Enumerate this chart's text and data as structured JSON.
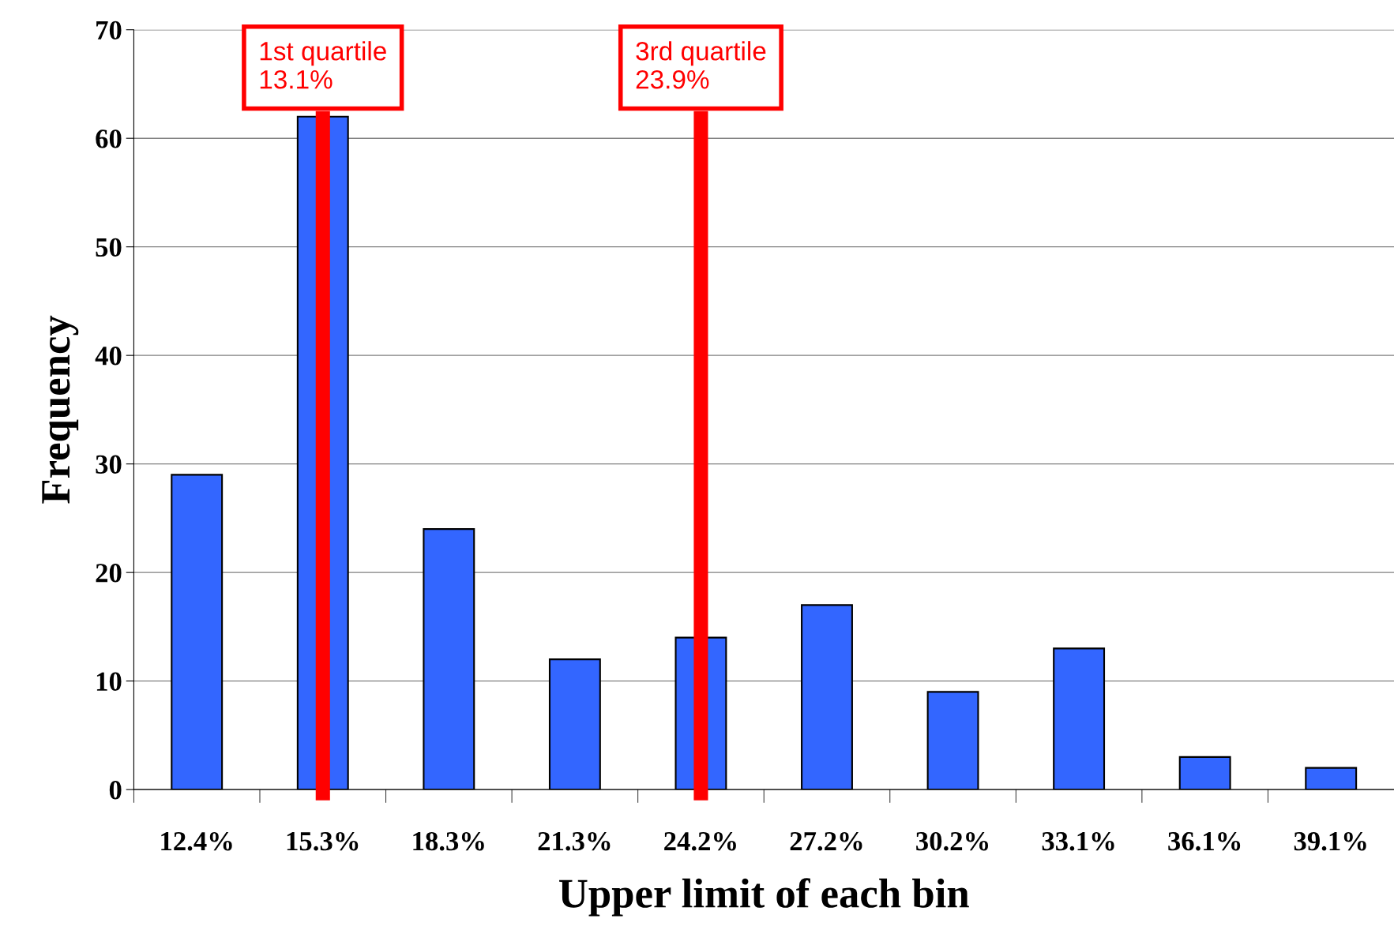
{
  "chart_data": {
    "type": "bar",
    "xlabel": "Upper limit of each bin",
    "ylabel": "Frequency",
    "categories": [
      "12.4%",
      "15.3%",
      "18.3%",
      "21.3%",
      "24.2%",
      "27.2%",
      "30.2%",
      "33.1%",
      "36.1%",
      "39.1%"
    ],
    "values": [
      29,
      62,
      24,
      12,
      14,
      17,
      9,
      13,
      3,
      2
    ],
    "color": "#3366ff",
    "ylim": [
      0,
      70
    ],
    "yticks": [
      0,
      10,
      20,
      30,
      40,
      50,
      60,
      70
    ],
    "grid": "y",
    "ref_lines": [
      {
        "axis": "x",
        "value": "15.3%",
        "label": "1st quartile\n13.1%",
        "color": "#ff0000"
      },
      {
        "axis": "x",
        "value": "24.2%",
        "label": "3rd quartile\n23.9%",
        "color": "#ff0000"
      }
    ]
  }
}
